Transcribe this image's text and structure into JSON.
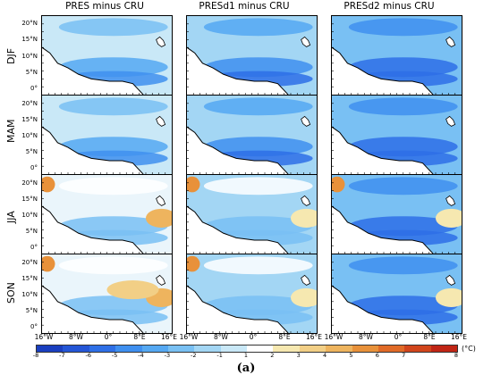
{
  "columns": [
    "PRES minus CRU",
    "PRESd1 minus CRU",
    "PRESd2 minus CRU"
  ],
  "rows": [
    "DJF",
    "MAM",
    "JJA",
    "SON"
  ],
  "y_ticks": [
    "20°N",
    "15°N",
    "10°N",
    "5°N",
    "0°"
  ],
  "x_ticks": [
    "16°W",
    "8°W",
    "0°",
    "8°E",
    "16°E"
  ],
  "colorbar": {
    "labels": [
      "-8",
      "-7",
      "-6",
      "-5",
      "-4",
      "-3",
      "-2",
      "-1",
      "1",
      "2",
      "3",
      "4",
      "5",
      "6",
      "7",
      "8"
    ],
    "unit": "(°C)",
    "colors": [
      "#1a3fbf",
      "#2456d6",
      "#2e6fe6",
      "#3f8fef",
      "#55a8f2",
      "#79c0f3",
      "#a3d6f4",
      "#c9e8f7",
      "#ffffff",
      "#f6e8b0",
      "#f2cf86",
      "#eeb45e",
      "#e8913a",
      "#e06a27",
      "#d1451c",
      "#c02515"
    ]
  },
  "caption": "(a)"
}
